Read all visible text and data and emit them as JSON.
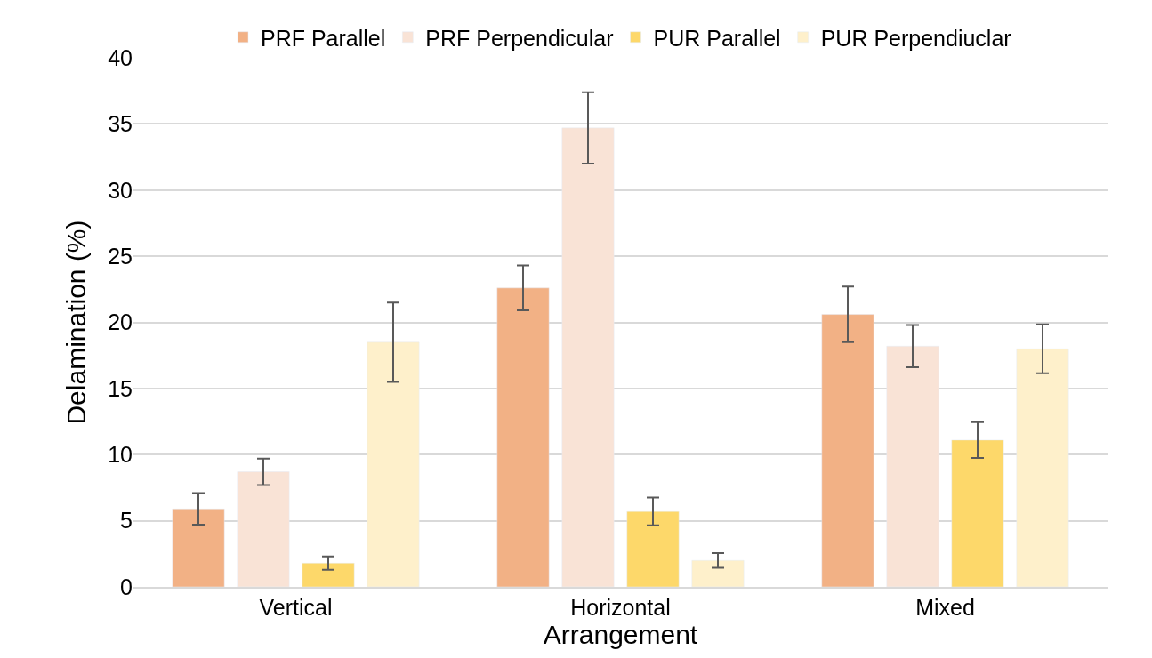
{
  "chart_data": {
    "type": "bar",
    "xlabel": "Arrangement",
    "ylabel": "Delamination (%)",
    "categories": [
      "Vertical",
      "Horizontal",
      "Mixed"
    ],
    "series": [
      {
        "name": "PRF Parallel",
        "color": "#f2b185",
        "values": [
          5.9,
          22.6,
          20.6
        ],
        "errors": [
          1.2,
          1.7,
          2.1
        ]
      },
      {
        "name": "PRF Perpendicular",
        "color": "#f9e3d6",
        "values": [
          8.7,
          34.7,
          18.2
        ],
        "errors": [
          1.0,
          2.7,
          1.6
        ]
      },
      {
        "name": "PUR Parallel",
        "color": "#fdd86a",
        "values": [
          1.8,
          5.7,
          11.1
        ],
        "errors": [
          0.5,
          1.05,
          1.35
        ]
      },
      {
        "name": "PUR Perpendiuclar",
        "color": "#fef0cb",
        "values": [
          18.5,
          2.0,
          18.0
        ],
        "errors": [
          3.0,
          0.55,
          1.85
        ]
      }
    ],
    "ylim": [
      0,
      40
    ],
    "yticks": [
      0,
      5,
      10,
      15,
      20,
      25,
      30,
      35,
      40
    ],
    "grid": "y",
    "legend": "top"
  }
}
